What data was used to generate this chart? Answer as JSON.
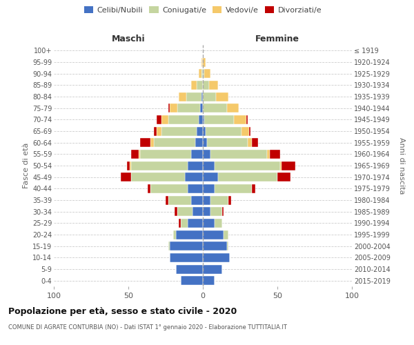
{
  "age_groups": [
    "0-4",
    "5-9",
    "10-14",
    "15-19",
    "20-24",
    "25-29",
    "30-34",
    "35-39",
    "40-44",
    "45-49",
    "50-54",
    "55-59",
    "60-64",
    "65-69",
    "70-74",
    "75-79",
    "80-84",
    "85-89",
    "90-94",
    "95-99",
    "100+"
  ],
  "birth_years": [
    "2015-2019",
    "2010-2014",
    "2005-2009",
    "2000-2004",
    "1995-1999",
    "1990-1994",
    "1985-1989",
    "1980-1984",
    "1975-1979",
    "1970-1974",
    "1965-1969",
    "1960-1964",
    "1955-1959",
    "1950-1954",
    "1945-1949",
    "1940-1944",
    "1935-1939",
    "1930-1934",
    "1925-1929",
    "1920-1924",
    "≤ 1919"
  ],
  "colors": {
    "celibe": "#4472C4",
    "coniugato": "#c5d5a0",
    "vedovo": "#f5c96a",
    "divorziato": "#c00000"
  },
  "maschi": {
    "celibe": [
      15,
      18,
      22,
      22,
      18,
      10,
      7,
      8,
      10,
      12,
      10,
      8,
      5,
      4,
      3,
      2,
      1,
      0,
      0,
      0,
      0
    ],
    "coniugato": [
      0,
      0,
      0,
      1,
      2,
      5,
      10,
      15,
      25,
      36,
      38,
      34,
      28,
      24,
      20,
      15,
      10,
      4,
      1,
      0,
      0
    ],
    "vedovo": [
      0,
      0,
      0,
      0,
      0,
      0,
      0,
      0,
      0,
      0,
      1,
      1,
      2,
      3,
      5,
      5,
      5,
      4,
      2,
      1,
      0
    ],
    "divorziato": [
      0,
      0,
      0,
      0,
      0,
      1,
      2,
      2,
      2,
      7,
      2,
      5,
      7,
      2,
      3,
      1,
      0,
      0,
      0,
      0,
      0
    ]
  },
  "femmine": {
    "celibe": [
      8,
      13,
      18,
      16,
      14,
      8,
      5,
      5,
      8,
      10,
      8,
      5,
      3,
      2,
      1,
      0,
      0,
      0,
      0,
      0,
      0
    ],
    "coniugato": [
      0,
      0,
      0,
      1,
      3,
      5,
      8,
      12,
      25,
      40,
      44,
      38,
      27,
      24,
      20,
      16,
      9,
      4,
      1,
      0,
      0
    ],
    "vedovo": [
      0,
      0,
      0,
      0,
      0,
      0,
      0,
      0,
      0,
      0,
      1,
      2,
      3,
      5,
      8,
      8,
      8,
      6,
      4,
      2,
      0
    ],
    "divorziato": [
      0,
      0,
      0,
      0,
      0,
      0,
      1,
      2,
      2,
      9,
      9,
      7,
      4,
      1,
      1,
      0,
      0,
      0,
      0,
      0,
      0
    ]
  },
  "xlim": 100,
  "title_main": "Popolazione per età, sesso e stato civile - 2020",
  "title_sub": "COMUNE DI AGRATE CONTURBIA (NO) - Dati ISTAT 1° gennaio 2020 - Elaborazione TUTTITALIA.IT",
  "ylabel": "Fasce di età",
  "right_label": "Anni di nascita",
  "maschi_label": "Maschi",
  "femmine_label": "Femmine",
  "legend_labels": [
    "Celibi/Nubili",
    "Coniugati/e",
    "Vedovi/e",
    "Divorziati/e"
  ],
  "bg_color": "#ffffff",
  "grid_color": "#cccccc"
}
